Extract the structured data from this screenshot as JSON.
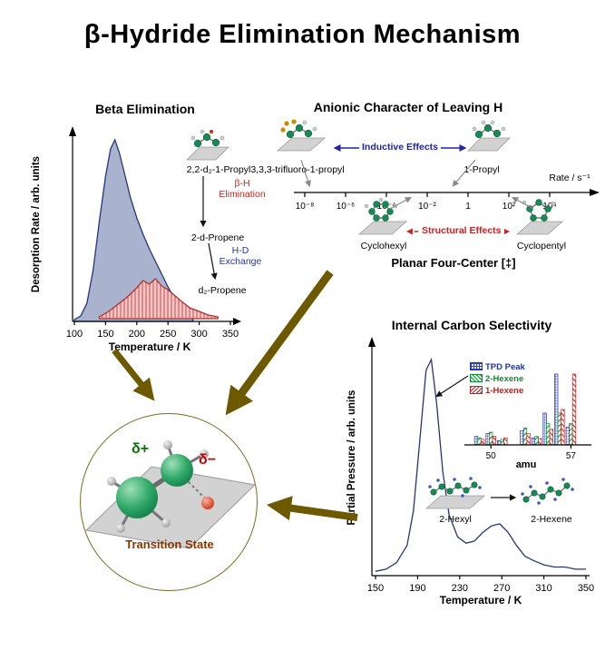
{
  "title": "β-Hydride Elimination Mechanism",
  "colors": {
    "connector_arrows": "#6d5900",
    "tpd_blue": "#26357e",
    "tpd_blue_fill": "#aab3cd",
    "exchange_red": "#b03030",
    "exchange_red_fill": "#f3c6c6",
    "inductive_blue": "#2222aa",
    "structural_red": "#cc2222",
    "delta_plus_green": "#007700",
    "delta_minus_red": "#cc0000",
    "transition_state_text": "#8a3500",
    "surface_gray": "#d2d2d2"
  },
  "beta_panel": {
    "title": "Beta Elimination",
    "ylabel": "Desorption Rate / arb. units",
    "xlabel": "Temperature / K",
    "reactant_label": "2,2-d₂-1-Propyl",
    "step1_line1": "β-H",
    "step1_line2": "Elimination",
    "product1_label": "2-d-Propene",
    "step2_line1": "H-D",
    "step2_line2": "Exchange",
    "product2_label": "d₂-Propene"
  },
  "anionic_panel": {
    "title": "Anionic Character of Leaving H",
    "inductive_label": "Inductive Effects",
    "structural_label": "Structural Effects",
    "left_molecule_label": "3,3,3-trifluoro-1-propyl",
    "right_molecule_label": "1-Propyl",
    "rate_axis_label": "Rate / s⁻¹",
    "axis_ticks": [
      "10⁻⁸",
      "10⁻⁶",
      "10⁻⁴",
      "10⁻²",
      "1",
      "10²",
      "10⁴"
    ],
    "bottom_left_label": "Cyclohexyl",
    "bottom_right_label": "Cyclopentyl",
    "four_center_label": "Planar Four-Center [‡]"
  },
  "selectivity_panel": {
    "title": "Internal Carbon Selectivity",
    "ylabel": "Partial Pressure / arb. units",
    "xlabel": "Temperature / K",
    "inset_xlabel": "amu",
    "legend": [
      "TPD Peak",
      "2-Hexene",
      "1-Hexene"
    ],
    "left_molecule_label": "2-Hexyl",
    "right_molecule_label": "2-Hexene"
  },
  "transition_panel": {
    "delta_plus": "δ+",
    "delta_minus": "δ−",
    "label": "Transition State"
  },
  "chart_data": [
    {
      "id": "beta_tpd",
      "type": "area",
      "title": "Beta Elimination",
      "xlabel": "Temperature / K",
      "ylabel": "Desorption Rate / arb. units",
      "xlim": [
        100,
        350
      ],
      "ylim": [
        0,
        1
      ],
      "x_ticks": [
        100,
        150,
        200,
        250,
        300,
        350
      ],
      "series": [
        {
          "name": "2-d-Propene (β-H elimination TPD)",
          "color": "#26357e",
          "fill": "#aab3cd",
          "x": [
            100,
            110,
            120,
            130,
            140,
            150,
            158,
            165,
            172,
            180,
            190,
            200,
            210,
            220,
            230,
            240,
            250,
            260,
            270,
            280,
            290
          ],
          "y": [
            0.01,
            0.03,
            0.1,
            0.28,
            0.55,
            0.8,
            0.95,
            1.0,
            0.93,
            0.82,
            0.68,
            0.57,
            0.48,
            0.4,
            0.33,
            0.26,
            0.19,
            0.13,
            0.08,
            0.04,
            0.01
          ]
        },
        {
          "name": "d₂-Propene (H-D exchange TPD)",
          "color": "#b03030",
          "fill": "#f3c6c6",
          "hatch": true,
          "x": [
            140,
            155,
            170,
            185,
            200,
            210,
            220,
            230,
            240,
            250,
            260,
            270,
            285,
            300,
            315,
            330
          ],
          "y": [
            0.01,
            0.04,
            0.08,
            0.12,
            0.17,
            0.21,
            0.19,
            0.22,
            0.18,
            0.16,
            0.13,
            0.1,
            0.06,
            0.04,
            0.02,
            0.01
          ]
        }
      ]
    },
    {
      "id": "selectivity_tpd",
      "type": "line",
      "title": "Internal Carbon Selectivity",
      "xlabel": "Temperature / K",
      "ylabel": "Partial Pressure / arb. units",
      "xlim": [
        150,
        350
      ],
      "ylim": [
        0,
        1
      ],
      "x_ticks": [
        150,
        190,
        230,
        270,
        310,
        350
      ],
      "series": [
        {
          "name": "2-Hexyl TPD trace",
          "color": "#26357e",
          "x": [
            150,
            160,
            170,
            180,
            186,
            192,
            198,
            203,
            208,
            214,
            220,
            228,
            236,
            244,
            252,
            260,
            268,
            276,
            284,
            292,
            300,
            310,
            320,
            330,
            340,
            350
          ],
          "y": [
            0.02,
            0.03,
            0.06,
            0.14,
            0.3,
            0.62,
            0.95,
            1.0,
            0.8,
            0.48,
            0.28,
            0.18,
            0.15,
            0.16,
            0.2,
            0.23,
            0.24,
            0.2,
            0.14,
            0.09,
            0.07,
            0.05,
            0.04,
            0.04,
            0.03,
            0.03
          ]
        }
      ]
    },
    {
      "id": "amu_bars",
      "type": "bar",
      "xlabel": "amu",
      "ylim": [
        0,
        1
      ],
      "x_ticks": [
        50,
        57
      ],
      "categories": [
        49,
        50,
        51,
        53,
        54,
        55,
        56,
        57
      ],
      "legend_position": "top-left",
      "series": [
        {
          "name": "TPD Peak",
          "pattern": "blue-check",
          "color": "#2233aa",
          "values": [
            0.12,
            0.16,
            0.06,
            0.2,
            0.1,
            0.45,
            1.0,
            0.25
          ]
        },
        {
          "name": "2-Hexene",
          "pattern": "green-diagonal",
          "color": "#118833",
          "values": [
            0.1,
            0.18,
            0.08,
            0.24,
            0.12,
            0.3,
            0.45,
            0.3
          ]
        },
        {
          "name": "1-Hexene",
          "pattern": "red-diagonal",
          "color": "#bb2222",
          "values": [
            0.08,
            0.12,
            0.1,
            0.16,
            0.09,
            0.22,
            0.5,
            1.0
          ]
        }
      ]
    }
  ]
}
